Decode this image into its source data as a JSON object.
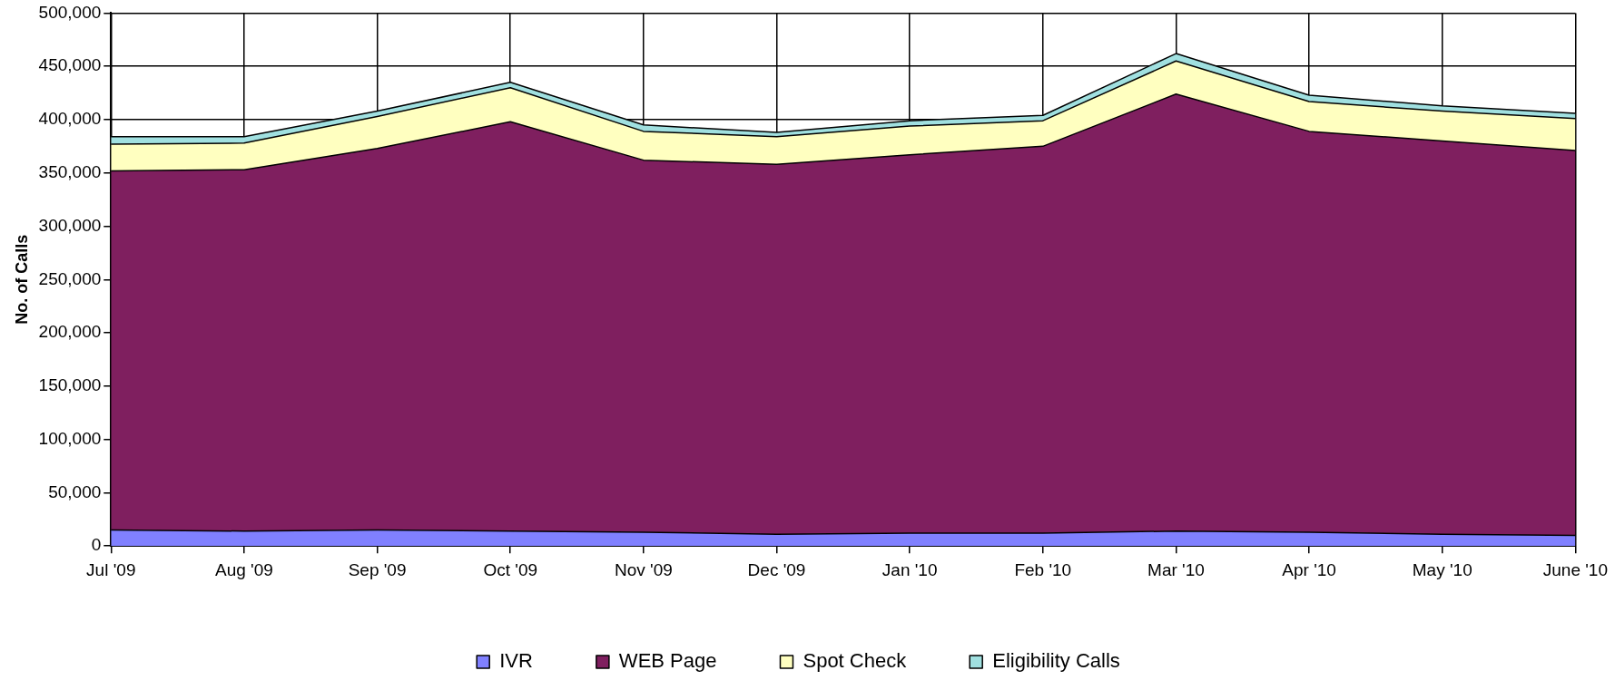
{
  "chart_data": {
    "type": "area",
    "stacked": true,
    "ylabel": "No. of Calls",
    "categories": [
      "Jul '09",
      "Aug '09",
      "Sep '09",
      "Oct '09",
      "Nov '09",
      "Dec '09",
      "Jan '10",
      "Feb '10",
      "Mar '10",
      "Apr '10",
      "May '10",
      "June '10"
    ],
    "series": [
      {
        "name": "IVR",
        "color": "#8080ff",
        "values": [
          15000,
          14000,
          15000,
          14000,
          13000,
          11000,
          12000,
          12000,
          14000,
          13000,
          11000,
          10000
        ]
      },
      {
        "name": "WEB Page",
        "color": "#7f1f5f",
        "values": [
          337000,
          339000,
          358000,
          384000,
          349000,
          347000,
          355000,
          363000,
          410000,
          376000,
          369000,
          361000
        ]
      },
      {
        "name": "Spot Check",
        "color": "#ffffc0",
        "values": [
          25000,
          25000,
          30000,
          32000,
          27000,
          26000,
          27000,
          24000,
          31000,
          28000,
          28000,
          30000
        ]
      },
      {
        "name": "Eligibility Calls",
        "color": "#a0e0e0",
        "values": [
          7000,
          6000,
          5000,
          5000,
          6000,
          4000,
          5000,
          5000,
          7000,
          6000,
          5000,
          5000
        ]
      }
    ],
    "ylim": [
      0,
      500000
    ],
    "yticks": [
      0,
      {
        "value": 50000,
        "label": "50,000"
      },
      {
        "value": 100000,
        "label": "100,000"
      },
      {
        "value": 150000,
        "label": "150,000"
      },
      {
        "value": 200000,
        "label": "200,000"
      },
      {
        "value": 250000,
        "label": "250,000"
      },
      {
        "value": 300000,
        "label": "300,000"
      },
      {
        "value": 350000,
        "label": "350,000"
      },
      {
        "value": 400000,
        "label": "400,000"
      },
      {
        "value": 450000,
        "label": "450,000"
      },
      {
        "value": 500000,
        "label": "500,000"
      }
    ],
    "grid": true,
    "legend": "bottom"
  }
}
